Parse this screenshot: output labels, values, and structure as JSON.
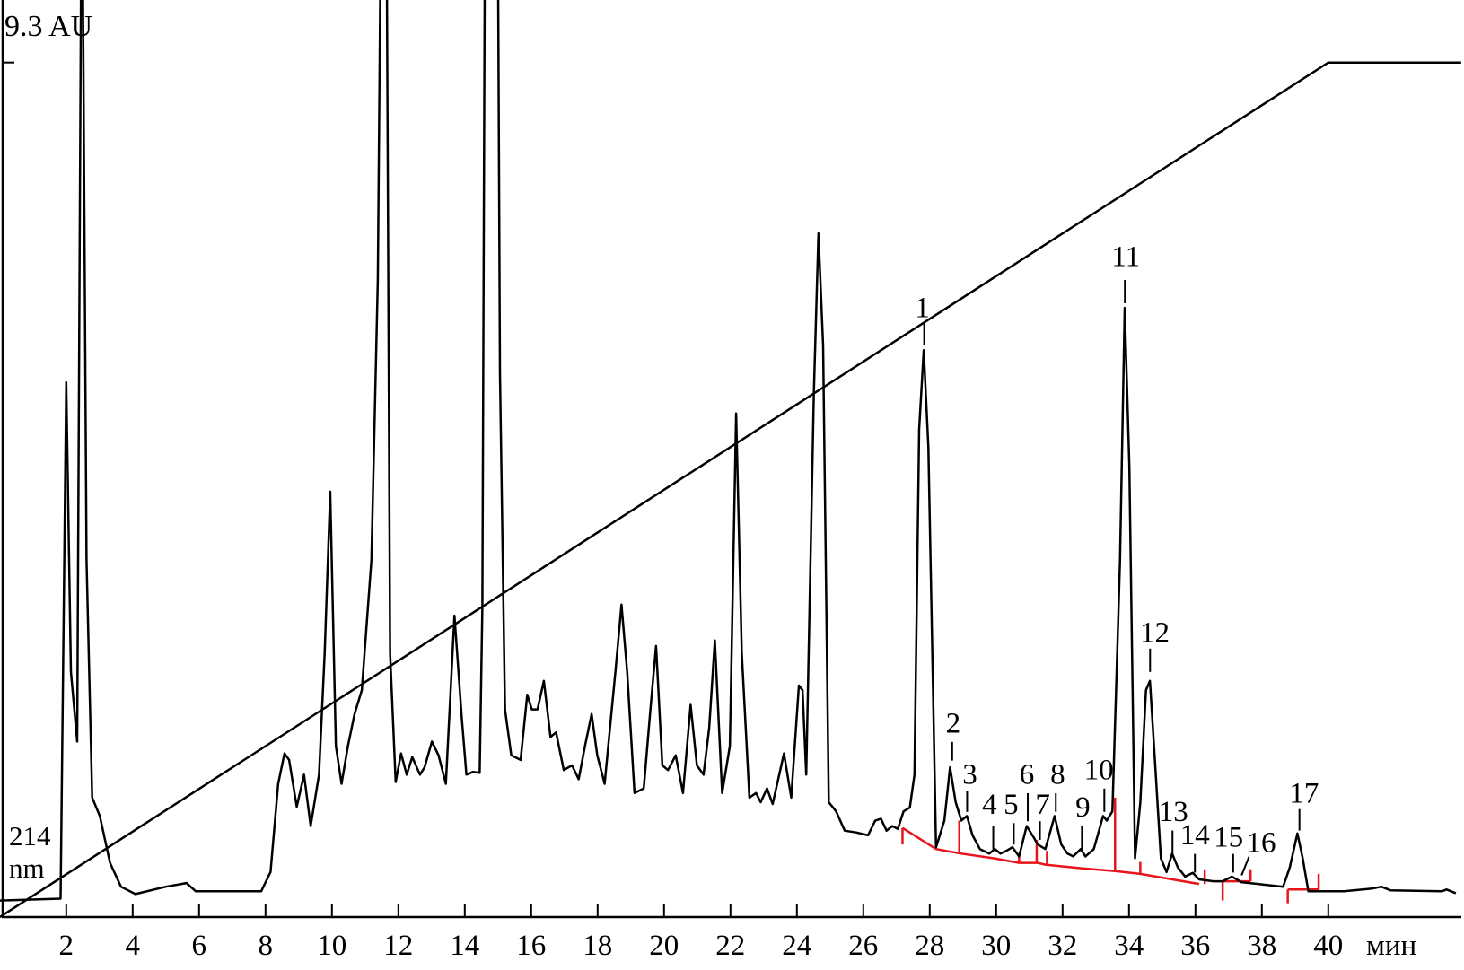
{
  "chart_data": {
    "type": "line",
    "ylabel_top": "9.3 AU",
    "wavelength_label_1": "214",
    "wavelength_label_2": "nm",
    "xlabel": "мин",
    "xlim": [
      0,
      44
    ],
    "ylim": [
      0,
      9.3
    ],
    "x_ticks": [
      "2",
      "4",
      "6",
      "8",
      "10",
      "12",
      "14",
      "16",
      "18",
      "20",
      "22",
      "24",
      "26",
      "28",
      "30",
      "32",
      "34",
      "36",
      "38",
      "40"
    ],
    "grid": false,
    "colors": {
      "trace": "#000000",
      "gradient": "#000000",
      "integration_baseline": "#e8141c"
    },
    "trace": {
      "t": [
        0,
        1.83,
        2.0,
        2.14,
        2.33,
        2.47,
        2.61,
        2.78,
        3.01,
        3.32,
        3.65,
        4.08,
        5.0,
        5.62,
        5.9,
        7.87,
        8.15,
        8.38,
        8.57,
        8.71,
        8.94,
        9.16,
        9.36,
        9.61,
        9.78,
        9.95,
        10.12,
        10.29,
        10.48,
        10.68,
        10.9,
        11.19,
        11.38,
        11.5,
        11.63,
        11.75,
        11.92,
        12.08,
        12.25,
        12.42,
        12.65,
        12.79,
        13.01,
        13.21,
        13.43,
        13.69,
        13.91,
        14.05,
        14.25,
        14.45,
        14.53,
        14.62,
        14.98,
        15.06,
        15.21,
        15.4,
        15.68,
        15.88,
        16.02,
        16.19,
        16.38,
        16.58,
        16.75,
        16.98,
        17.23,
        17.43,
        17.62,
        17.82,
        17.99,
        18.21,
        18.55,
        18.72,
        18.89,
        19.11,
        19.39,
        19.59,
        19.76,
        19.95,
        20.12,
        20.35,
        20.57,
        20.8,
        20.99,
        21.19,
        21.36,
        21.53,
        21.75,
        21.98,
        22.17,
        22.34,
        22.57,
        22.77,
        22.91,
        23.1,
        23.27,
        23.61,
        23.83,
        24.06,
        24.17,
        24.28,
        24.51,
        24.65,
        24.79,
        24.96,
        25.18,
        25.44,
        25.8,
        26.14,
        26.36,
        26.53,
        26.7,
        26.87,
        27.04,
        27.21,
        27.4,
        27.54,
        27.68,
        27.82,
        27.96,
        28.19,
        28.44,
        28.61,
        28.78,
        28.95,
        29.12,
        29.29,
        29.51,
        29.79,
        29.96,
        30.13,
        30.3,
        30.49,
        30.69,
        30.92,
        31.14,
        31.25,
        31.48,
        31.76,
        31.96,
        32.15,
        32.32,
        32.55,
        32.69,
        32.94,
        33.22,
        33.33,
        33.5,
        33.73,
        33.87,
        34.01,
        34.18,
        34.34,
        34.51,
        34.63,
        34.79,
        34.96,
        35.13,
        35.3,
        35.47,
        35.69,
        35.92,
        36.11,
        36.54,
        36.82,
        37.1,
        37.38,
        38.64,
        38.84,
        39.07,
        39.23,
        39.4,
        40.47,
        41.31,
        41.6,
        41.88,
        43.42,
        43.56,
        43.84
      ],
      "v": [
        0.18,
        0.2,
        5.82,
        2.67,
        1.91,
        12,
        3.89,
        1.3,
        1.1,
        0.59,
        0.33,
        0.25,
        0.33,
        0.37,
        0.28,
        0.28,
        0.49,
        1.45,
        1.78,
        1.71,
        1.2,
        1.55,
        0.99,
        1.55,
        2.87,
        4.63,
        1.86,
        1.45,
        1.86,
        2.21,
        2.47,
        3.89,
        6.93,
        12,
        12,
        2.87,
        1.47,
        1.78,
        1.55,
        1.74,
        1.55,
        1.63,
        1.91,
        1.76,
        1.45,
        3.28,
        2.16,
        1.55,
        1.58,
        1.57,
        3.38,
        12,
        12,
        5.92,
        2.26,
        1.76,
        1.71,
        2.42,
        2.26,
        2.26,
        2.57,
        1.96,
        2.01,
        1.6,
        1.65,
        1.5,
        1.86,
        2.21,
        1.76,
        1.45,
        2.72,
        3.4,
        2.67,
        1.35,
        1.4,
        2.26,
        2.95,
        1.65,
        1.6,
        1.76,
        1.35,
        2.31,
        1.65,
        1.55,
        2.06,
        3.01,
        1.35,
        1.86,
        5.48,
        2.87,
        1.3,
        1.35,
        1.25,
        1.4,
        1.23,
        1.78,
        1.3,
        2.52,
        2.47,
        1.55,
        5.71,
        7.44,
        6.22,
        1.25,
        1.15,
        0.94,
        0.92,
        0.89,
        1.05,
        1.07,
        0.94,
        0.99,
        0.96,
        1.15,
        1.19,
        1.55,
        5.31,
        6.17,
        5.11,
        0.76,
        1.05,
        1.63,
        1.25,
        1.05,
        1.1,
        0.89,
        0.74,
        0.69,
        0.74,
        0.69,
        0.72,
        0.76,
        0.66,
        0.99,
        0.86,
        0.79,
        0.74,
        1.1,
        0.79,
        0.69,
        0.66,
        0.74,
        0.66,
        0.74,
        1.1,
        1.05,
        1.15,
        3.89,
        6.63,
        4.9,
        0.64,
        1.25,
        2.47,
        2.57,
        1.65,
        0.64,
        0.49,
        0.69,
        0.54,
        0.44,
        0.48,
        0.41,
        0.39,
        0.39,
        0.44,
        0.38,
        0.33,
        0.54,
        0.91,
        0.64,
        0.28,
        0.28,
        0.31,
        0.33,
        0.29,
        0.28,
        0.3,
        0.26
      ]
    },
    "gradient": {
      "t": [
        0,
        40,
        44
      ],
      "v": [
        0,
        9.3,
        9.3
      ]
    },
    "integration_baselines": [
      {
        "t": [
          27.18,
          28.19,
          28.95,
          29.93,
          30.69,
          31.25,
          31.48,
          32.6,
          33.58,
          34.34,
          36.11
        ],
        "v": [
          0.97,
          0.74,
          0.69,
          0.64,
          0.59,
          0.59,
          0.57,
          0.53,
          0.5,
          0.47,
          0.36
        ]
      },
      {
        "t": [
          36.82,
          37.66
        ],
        "v": [
          0.39,
          0.39
        ]
      },
      {
        "t": [
          38.78,
          39.71
        ],
        "v": [
          0.3,
          0.3
        ]
      }
    ],
    "integration_ticks": [
      {
        "t": 27.18,
        "v": [
          0.79,
          0.97
        ]
      },
      {
        "t": 28.89,
        "v": [
          0.69,
          1.05
        ]
      },
      {
        "t": 30.69,
        "v": [
          0.59,
          0.69
        ]
      },
      {
        "t": 31.22,
        "v": [
          0.59,
          0.84
        ]
      },
      {
        "t": 31.53,
        "v": [
          0.57,
          0.72
        ]
      },
      {
        "t": 33.58,
        "v": [
          0.5,
          1.3
        ]
      },
      {
        "t": 34.34,
        "v": [
          0.47,
          0.6
        ]
      },
      {
        "t": 36.28,
        "v": [
          0.36,
          0.52
        ]
      },
      {
        "t": 36.82,
        "v": [
          0.18,
          0.39
        ]
      },
      {
        "t": 37.66,
        "v": [
          0.39,
          0.52
        ]
      },
      {
        "t": 38.78,
        "v": [
          0.15,
          0.3
        ]
      },
      {
        "t": 39.71,
        "v": [
          0.3,
          0.47
        ]
      }
    ],
    "peak_labels": [
      "1",
      "2",
      "3",
      "4",
      "5",
      "6",
      "7",
      "8",
      "9",
      "10",
      "11",
      "12",
      "13",
      "14",
      "15",
      "16",
      "17"
    ]
  }
}
